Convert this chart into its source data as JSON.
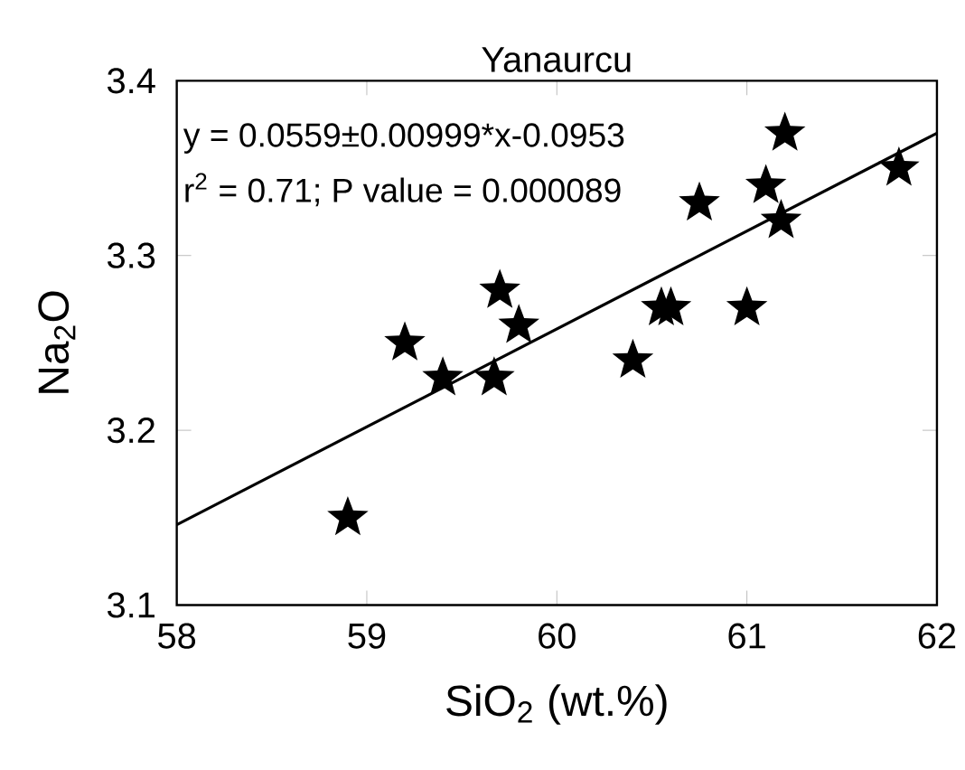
{
  "chart_data": {
    "type": "scatter",
    "title": "Yanaurcu",
    "xlabel": "SiO$_{2}$ (wt.%)",
    "ylabel": "Na$_{2}$O",
    "annotations": [
      "y = 0.0559±0.00999*x-0.0953",
      "r$^{2}$ = 0.71; P value = 0.000089"
    ],
    "xlim": [
      58,
      62
    ],
    "ylim": [
      3.1,
      3.4
    ],
    "xticks": [
      58,
      59,
      60,
      61,
      62
    ],
    "yticks": [
      3.1,
      3.2,
      3.3,
      3.4
    ],
    "marker": "star",
    "series": [
      {
        "type": "scatter",
        "color": "#000000",
        "x": [
          58.9,
          59.2,
          59.4,
          59.67,
          59.7,
          59.8,
          60.4,
          60.55,
          60.6,
          60.75,
          61.0,
          61.1,
          61.2,
          61.18,
          61.8
        ],
        "values": [
          3.15,
          3.25,
          3.23,
          3.23,
          3.28,
          3.26,
          3.24,
          3.27,
          3.27,
          3.33,
          3.27,
          3.34,
          3.37,
          3.32,
          3.35
        ]
      },
      {
        "type": "line",
        "color": "#000000",
        "marker": "none",
        "line_style": "solid",
        "x": [
          58,
          62
        ],
        "values": [
          3.146,
          3.37
        ]
      }
    ]
  }
}
